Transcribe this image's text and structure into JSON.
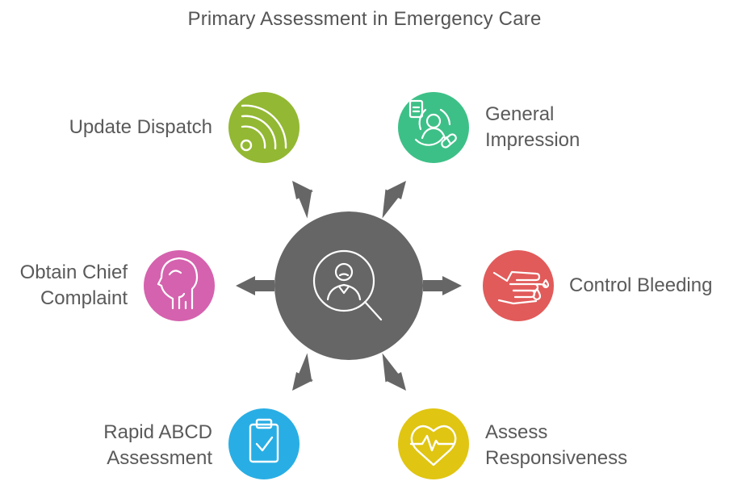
{
  "title": "Primary Assessment in Emergency Care",
  "center": {
    "icon": "patient-search-icon",
    "color": "#666666"
  },
  "nodes": [
    {
      "id": "update-dispatch",
      "label": "Update Dispatch",
      "icon": "radio-signal-icon",
      "color": "#93B833"
    },
    {
      "id": "general-impression",
      "label": "General\nImpression",
      "icon": "patient-record-icon",
      "color": "#3DC087"
    },
    {
      "id": "control-bleeding",
      "label": "Control Bleeding",
      "icon": "bleeding-hand-icon",
      "color": "#E15B5A"
    },
    {
      "id": "assess-responsiveness",
      "label": "Assess\nResponsiveness",
      "icon": "heart-rate-icon",
      "color": "#E0C512"
    },
    {
      "id": "rapid-abcd-assessment",
      "label": "Rapid ABCD\nAssessment",
      "icon": "clipboard-check-icon",
      "color": "#28AEE4"
    },
    {
      "id": "obtain-chief-complaint",
      "label": "Obtain Chief\nComplaint",
      "icon": "head-profile-icon",
      "color": "#D562AE"
    }
  ]
}
